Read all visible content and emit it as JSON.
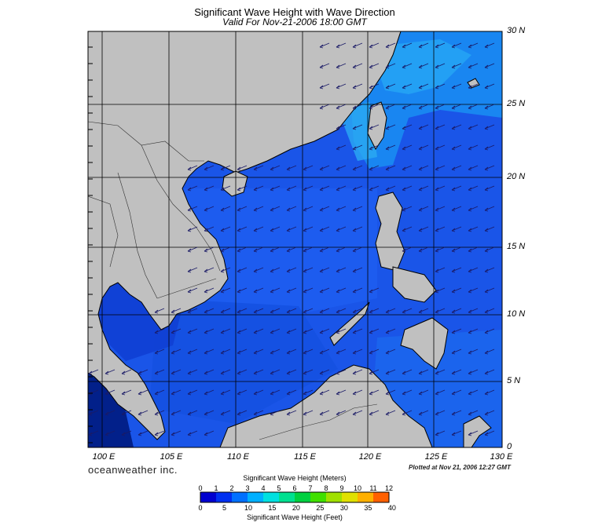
{
  "header": {
    "title": "Significant Wave Height with Wave Direction",
    "subtitle": "Valid For Nov-21-2006 18:00 GMT"
  },
  "map": {
    "lon_range": [
      99,
      130
    ],
    "lat_range": [
      0,
      30
    ],
    "lat_labels": [
      "30 N",
      "25 N",
      "20 N",
      "15 N",
      "10 N",
      "5 N",
      "0"
    ],
    "lon_labels": [
      "100 E",
      "105 E",
      "110 E",
      "115 E",
      "120 E",
      "125 E",
      "130 E"
    ],
    "land_color": "#c0c0c0",
    "sea_base_color": "#1a55e8",
    "arrow_direction": "from northeast toward southwest"
  },
  "footer": {
    "brand": "oceanweather inc.",
    "plotted": "Plotted at Nov 21, 2006 12:27 GMT"
  },
  "colorbar": {
    "title_meters": "Significant Wave Height (Meters)",
    "title_feet": "Significant Wave Height (Feet)",
    "meters_ticks": [
      "0",
      "1",
      "2",
      "3",
      "4",
      "5",
      "6",
      "7",
      "8",
      "9",
      "10",
      "11",
      "12"
    ],
    "feet_ticks": [
      "0",
      "5",
      "10",
      "15",
      "20",
      "25",
      "30",
      "35",
      "40"
    ],
    "colors": [
      "#0000d0",
      "#0030f0",
      "#0070ff",
      "#00b0ff",
      "#00e0e0",
      "#00e090",
      "#00d040",
      "#40e000",
      "#a0e000",
      "#e0e000",
      "#ffb000",
      "#ff6000",
      "#ff0000"
    ]
  }
}
